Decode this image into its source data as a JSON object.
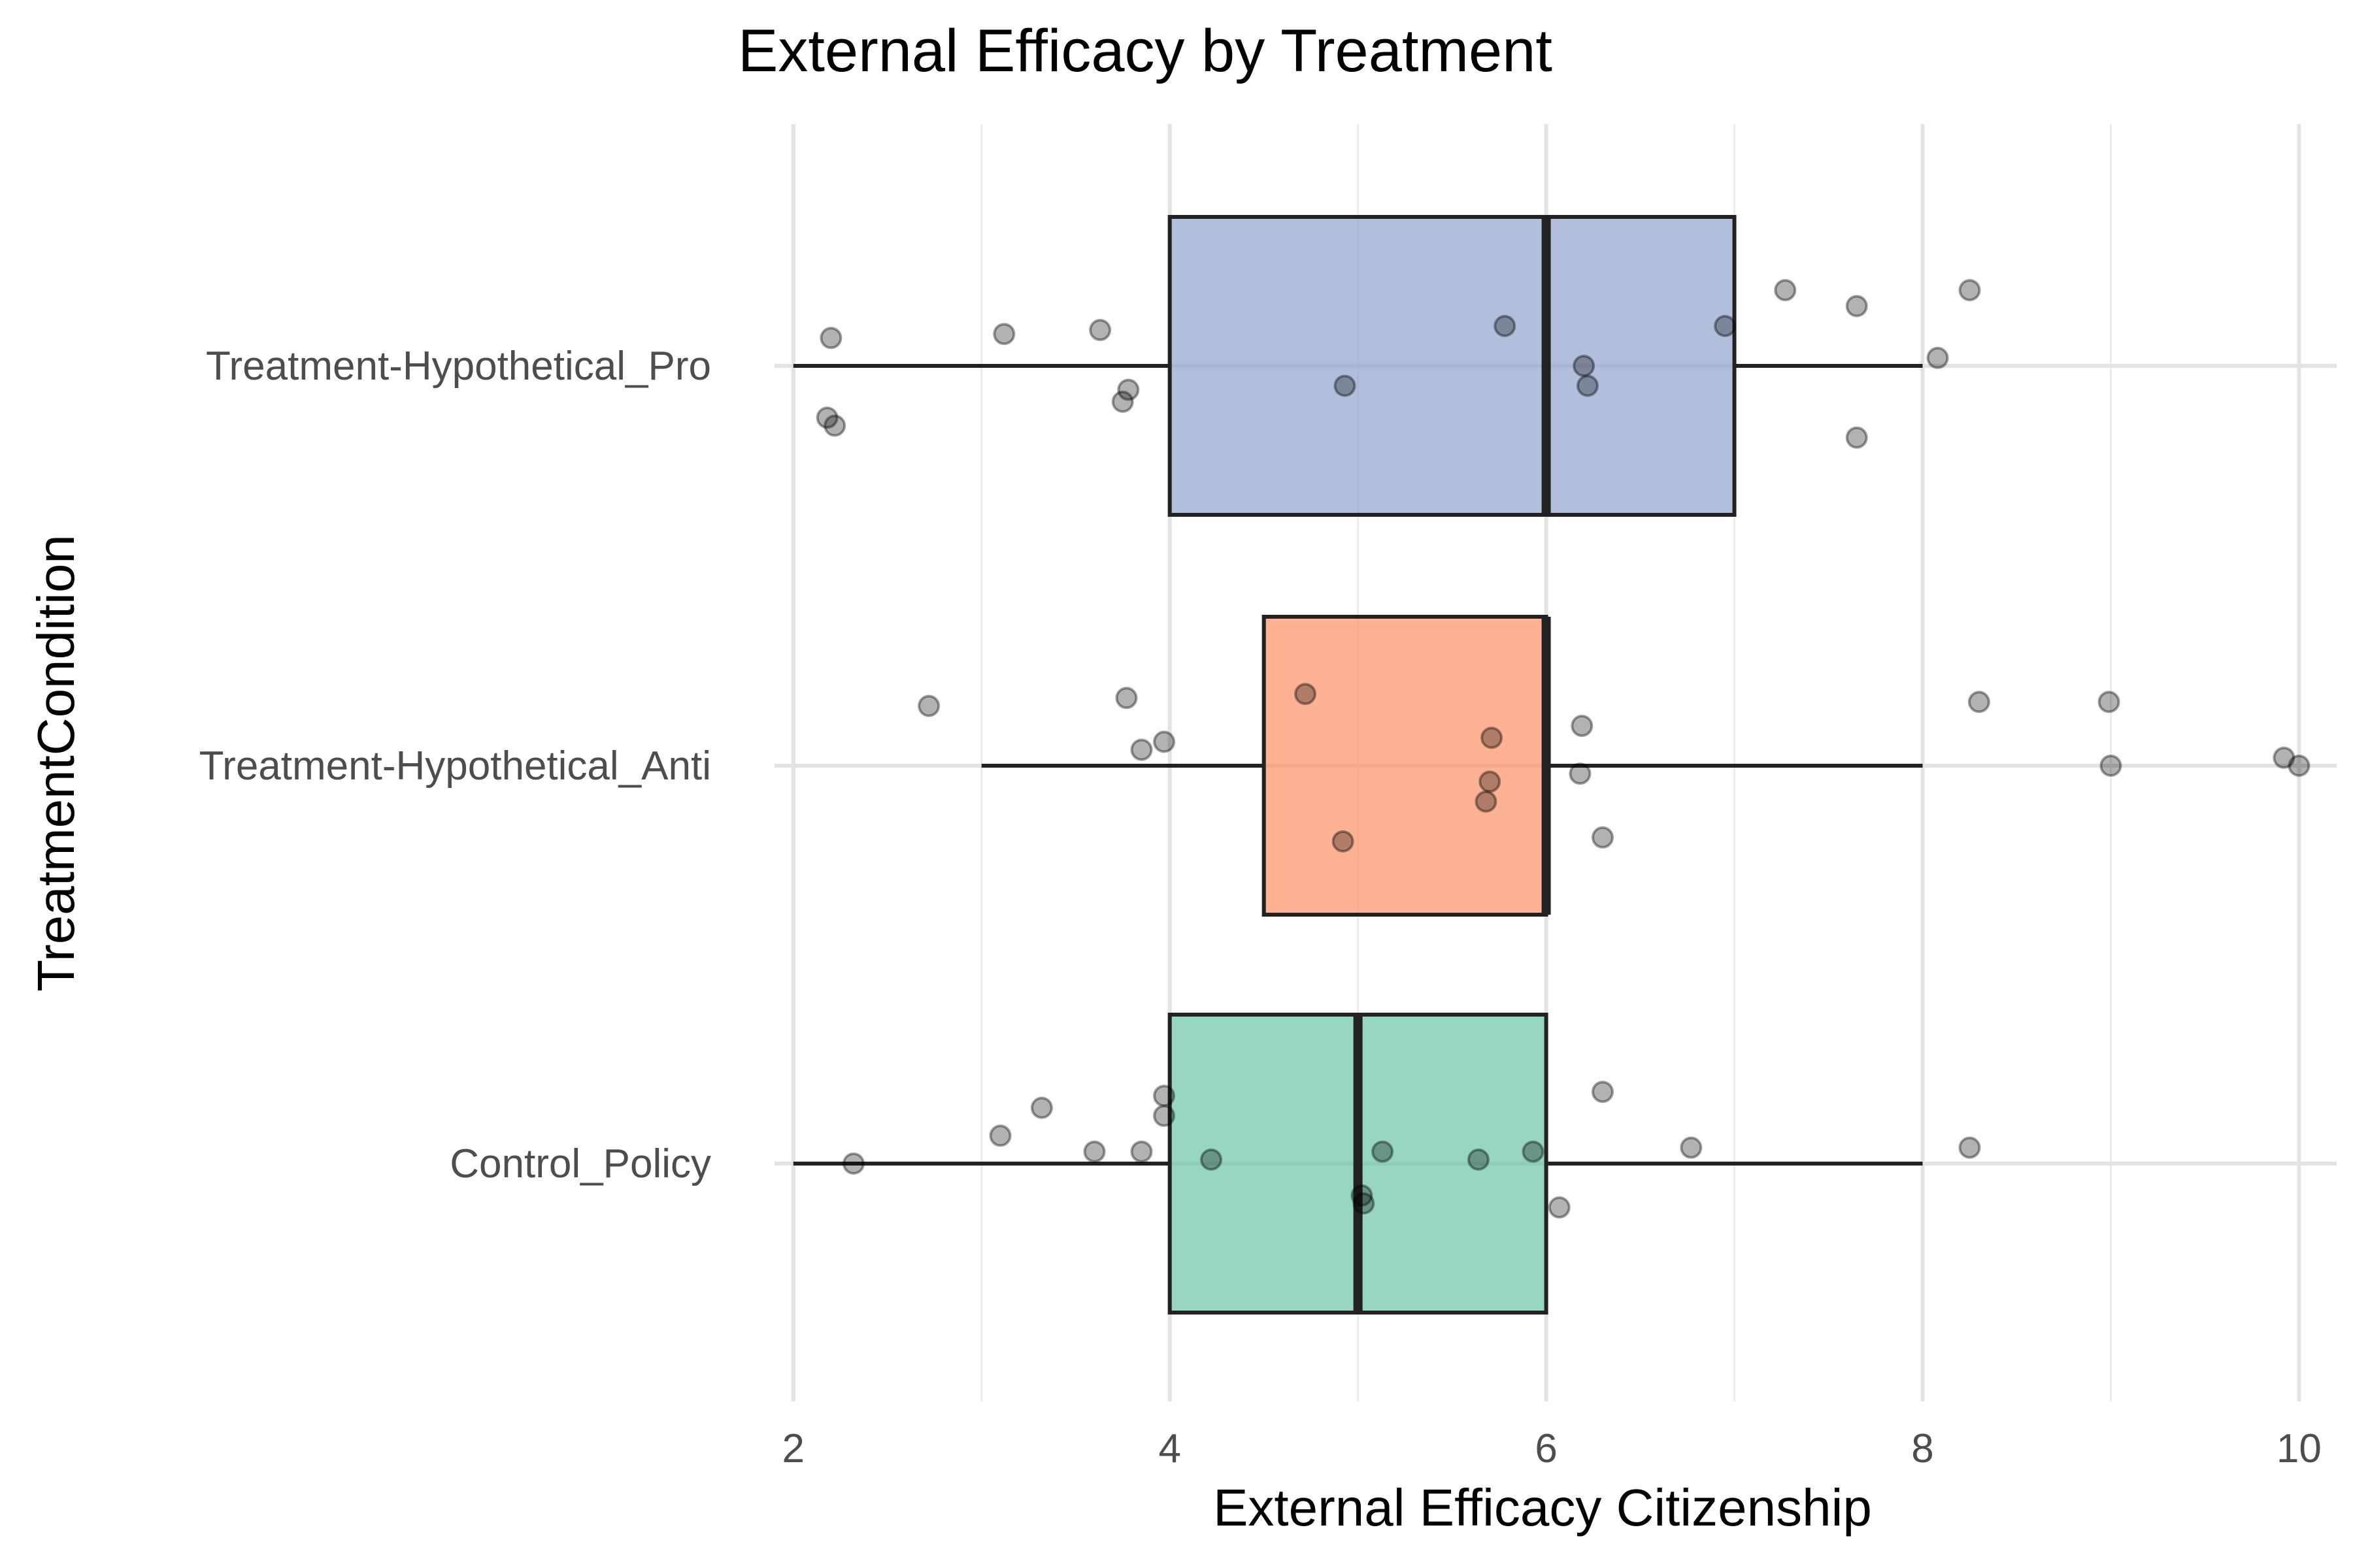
{
  "chart_data": {
    "type": "boxplot",
    "orientation": "horizontal",
    "title": "External Efficacy by Treatment",
    "xlabel": "External Efficacy Citizenship",
    "ylabel": "TreatmentCondition",
    "xlim": [
      1.9,
      10.2
    ],
    "xticks": [
      2,
      4,
      6,
      8,
      10
    ],
    "grid": true,
    "legend": "none",
    "categories": [
      "Control_Policy",
      "Treatment-Hypothetical_Anti",
      "Treatment-Hypothetical_Pro"
    ],
    "boxes": [
      {
        "category": "Control_Policy",
        "min": 2,
        "q1": 4,
        "median": 5,
        "q3": 6,
        "max": 8,
        "color": "#66c2a5"
      },
      {
        "category": "Treatment-Hypothetical_Anti",
        "min": 3,
        "q1": 4.5,
        "median": 6,
        "q3": 6,
        "max": 8,
        "color": "#fc8d62"
      },
      {
        "category": "Treatment-Hypothetical_Pro",
        "min": 2,
        "q1": 4,
        "median": 6,
        "q3": 7,
        "max": 8,
        "color": "#8da0cb"
      }
    ],
    "points": [
      {
        "category": "Control_Policy",
        "x": 2.32,
        "jitter": 0.0
      },
      {
        "category": "Control_Policy",
        "x": 3.1,
        "jitter": 0.07
      },
      {
        "category": "Control_Policy",
        "x": 3.32,
        "jitter": 0.14
      },
      {
        "category": "Control_Policy",
        "x": 3.6,
        "jitter": 0.03
      },
      {
        "category": "Control_Policy",
        "x": 3.85,
        "jitter": 0.03
      },
      {
        "category": "Control_Policy",
        "x": 3.97,
        "jitter": 0.17
      },
      {
        "category": "Control_Policy",
        "x": 3.97,
        "jitter": 0.12
      },
      {
        "category": "Control_Policy",
        "x": 4.22,
        "jitter": 0.01
      },
      {
        "category": "Control_Policy",
        "x": 5.02,
        "jitter": -0.08
      },
      {
        "category": "Control_Policy",
        "x": 5.03,
        "jitter": -0.1
      },
      {
        "category": "Control_Policy",
        "x": 5.13,
        "jitter": 0.03
      },
      {
        "category": "Control_Policy",
        "x": 5.64,
        "jitter": 0.01
      },
      {
        "category": "Control_Policy",
        "x": 5.93,
        "jitter": 0.03
      },
      {
        "category": "Control_Policy",
        "x": 6.07,
        "jitter": -0.11
      },
      {
        "category": "Control_Policy",
        "x": 6.3,
        "jitter": 0.18
      },
      {
        "category": "Control_Policy",
        "x": 6.77,
        "jitter": 0.04
      },
      {
        "category": "Control_Policy",
        "x": 8.25,
        "jitter": 0.04
      },
      {
        "category": "Treatment-Hypothetical_Anti",
        "x": 2.72,
        "jitter": 0.15
      },
      {
        "category": "Treatment-Hypothetical_Anti",
        "x": 3.77,
        "jitter": 0.17
      },
      {
        "category": "Treatment-Hypothetical_Anti",
        "x": 3.85,
        "jitter": 0.04
      },
      {
        "category": "Treatment-Hypothetical_Anti",
        "x": 3.97,
        "jitter": 0.06
      },
      {
        "category": "Treatment-Hypothetical_Anti",
        "x": 4.72,
        "jitter": 0.18
      },
      {
        "category": "Treatment-Hypothetical_Anti",
        "x": 4.92,
        "jitter": -0.19
      },
      {
        "category": "Treatment-Hypothetical_Anti",
        "x": 5.68,
        "jitter": -0.09
      },
      {
        "category": "Treatment-Hypothetical_Anti",
        "x": 5.7,
        "jitter": -0.04
      },
      {
        "category": "Treatment-Hypothetical_Anti",
        "x": 5.71,
        "jitter": 0.07
      },
      {
        "category": "Treatment-Hypothetical_Anti",
        "x": 6.18,
        "jitter": -0.02
      },
      {
        "category": "Treatment-Hypothetical_Anti",
        "x": 6.19,
        "jitter": 0.1
      },
      {
        "category": "Treatment-Hypothetical_Anti",
        "x": 6.3,
        "jitter": -0.18
      },
      {
        "category": "Treatment-Hypothetical_Anti",
        "x": 8.3,
        "jitter": 0.16
      },
      {
        "category": "Treatment-Hypothetical_Anti",
        "x": 8.99,
        "jitter": 0.16
      },
      {
        "category": "Treatment-Hypothetical_Anti",
        "x": 9.0,
        "jitter": 0.0
      },
      {
        "category": "Treatment-Hypothetical_Anti",
        "x": 9.92,
        "jitter": 0.02
      },
      {
        "category": "Treatment-Hypothetical_Anti",
        "x": 10.0,
        "jitter": 0.0
      },
      {
        "category": "Treatment-Hypothetical_Pro",
        "x": 2.18,
        "jitter": -0.13
      },
      {
        "category": "Treatment-Hypothetical_Pro",
        "x": 2.2,
        "jitter": 0.07
      },
      {
        "category": "Treatment-Hypothetical_Pro",
        "x": 2.22,
        "jitter": -0.15
      },
      {
        "category": "Treatment-Hypothetical_Pro",
        "x": 3.12,
        "jitter": 0.08
      },
      {
        "category": "Treatment-Hypothetical_Pro",
        "x": 3.63,
        "jitter": 0.09
      },
      {
        "category": "Treatment-Hypothetical_Pro",
        "x": 3.75,
        "jitter": -0.09
      },
      {
        "category": "Treatment-Hypothetical_Pro",
        "x": 3.78,
        "jitter": -0.06
      },
      {
        "category": "Treatment-Hypothetical_Pro",
        "x": 4.93,
        "jitter": -0.05
      },
      {
        "category": "Treatment-Hypothetical_Pro",
        "x": 5.78,
        "jitter": 0.1
      },
      {
        "category": "Treatment-Hypothetical_Pro",
        "x": 6.2,
        "jitter": 0.0
      },
      {
        "category": "Treatment-Hypothetical_Pro",
        "x": 6.22,
        "jitter": -0.05
      },
      {
        "category": "Treatment-Hypothetical_Pro",
        "x": 6.95,
        "jitter": 0.1
      },
      {
        "category": "Treatment-Hypothetical_Pro",
        "x": 7.27,
        "jitter": 0.19
      },
      {
        "category": "Treatment-Hypothetical_Pro",
        "x": 7.65,
        "jitter": 0.15
      },
      {
        "category": "Treatment-Hypothetical_Pro",
        "x": 7.65,
        "jitter": -0.18
      },
      {
        "category": "Treatment-Hypothetical_Pro",
        "x": 8.08,
        "jitter": 0.02
      },
      {
        "category": "Treatment-Hypothetical_Pro",
        "x": 8.25,
        "jitter": 0.19
      }
    ]
  }
}
